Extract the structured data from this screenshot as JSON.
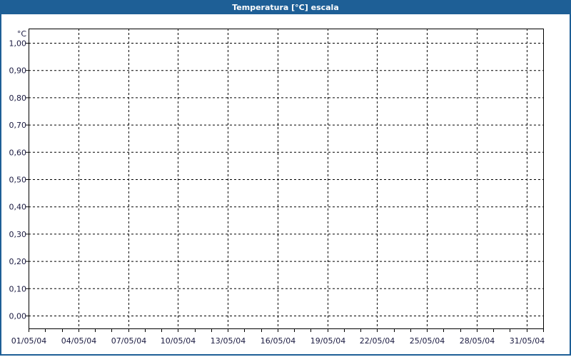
{
  "window": {
    "title": "Temperatura [°C] escala",
    "accent": "#1e5f96"
  },
  "chart_data": {
    "type": "line",
    "title": "Temperatura [°C] escala",
    "ylabel": "°C",
    "xlabel": "",
    "ylim": [
      0,
      1
    ],
    "yticks": [
      "0,00",
      "0,10",
      "0,20",
      "0,30",
      "0,40",
      "0,50",
      "0,60",
      "0,70",
      "0,80",
      "0,90",
      "1,00"
    ],
    "xlim": [
      "01/05/04",
      "01/06/04"
    ],
    "xticks": [
      "01/05/04",
      "04/05/04",
      "07/05/04",
      "10/05/04",
      "13/05/04",
      "16/05/04",
      "19/05/04",
      "22/05/04",
      "25/05/04",
      "28/05/04",
      "31/05/04"
    ],
    "grid": true,
    "series": []
  }
}
